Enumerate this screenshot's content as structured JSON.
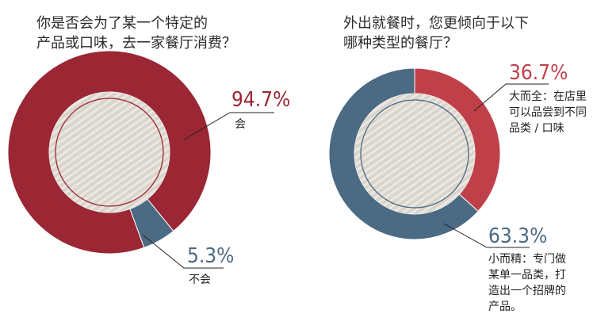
{
  "chart_data": [
    {
      "type": "pie",
      "title": "你是否会为了某一个特定的\n产品或口味，去一家餐厅消费？",
      "slices": [
        {
          "label": "会",
          "value": 94.7,
          "value_text": "94.7%",
          "color": "#9b2634"
        },
        {
          "label": "不会",
          "value": 5.3,
          "value_text": "5.3%",
          "color": "#4b6a84"
        }
      ],
      "inner_ring_color": "#9b2634"
    },
    {
      "type": "pie",
      "title": "外出就餐时，您更倾向于以下\n哪种类型的餐厅？",
      "slices": [
        {
          "label": "大而全：在店里\n可以品尝到不同\n品类 / 口味",
          "value": 36.7,
          "value_text": "36.7%",
          "color": "#c0404a"
        },
        {
          "label": "小而精：专门做\n某单一品类，打\n造出一个招牌的\n产品。",
          "value": 63.3,
          "value_text": "63.3%",
          "color": "#4b6a84"
        }
      ],
      "inner_ring_color": "#4b6a84"
    }
  ]
}
